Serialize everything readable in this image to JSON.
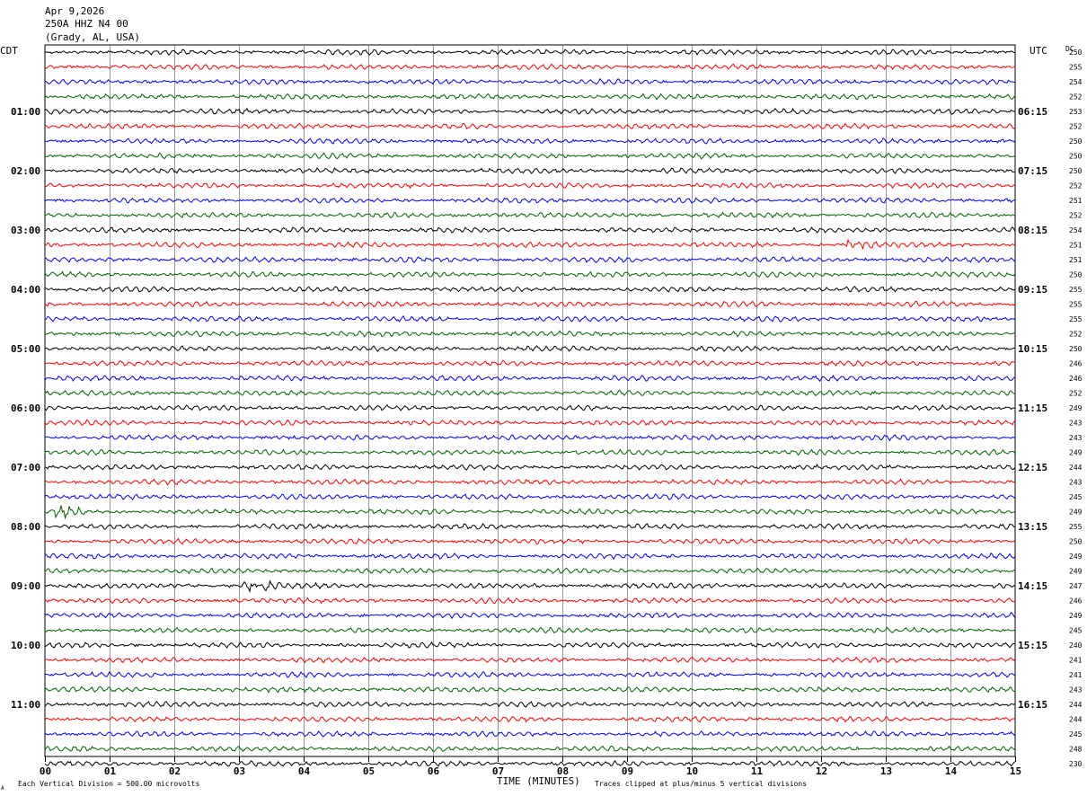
{
  "header": {
    "date": "Apr 9,2026",
    "station": "250A HHZ N4 00",
    "location": "(Grady, AL, USA)"
  },
  "left_tz": "CDT",
  "right_tz": "UTC",
  "dc_label": "DC",
  "footer": {
    "vertical_division": "Each Vertical Division =  500.00 microvolts",
    "clip_note": "Traces clipped at plus/minus 5 vertical divisions",
    "corner_mark": "A"
  },
  "chart_data": {
    "type": "line",
    "xlabel": "TIME (MINUTES)",
    "x_ticks": [
      "00",
      "01",
      "02",
      "03",
      "04",
      "05",
      "06",
      "07",
      "08",
      "09",
      "10",
      "11",
      "12",
      "13",
      "14",
      "15"
    ],
    "xlim": [
      0,
      15
    ],
    "grid": true,
    "trace_colors": [
      "#000000",
      "#ff0000",
      "#0000ff",
      "#006400"
    ],
    "left_hour_labels": [
      "01:00",
      "02:00",
      "03:00",
      "04:00",
      "05:00",
      "06:00",
      "07:00",
      "08:00",
      "09:00",
      "10:00",
      "11:00"
    ],
    "right_hour_labels": [
      "06:15",
      "07:15",
      "08:15",
      "09:15",
      "10:15",
      "11:15",
      "12:15",
      "13:15",
      "14:15",
      "15:15",
      "16:15"
    ],
    "dc_offsets": [
      "250",
      "255",
      "254",
      "252",
      "253",
      "252",
      "250",
      "250",
      "250",
      "252",
      "251",
      "252",
      "254",
      "251",
      "251",
      "250",
      "255",
      "255",
      "255",
      "252",
      "250",
      "246",
      "246",
      "252",
      "249",
      "243",
      "243",
      "249",
      "244",
      "243",
      "245",
      "249",
      "255",
      "250",
      "249",
      "249",
      "247",
      "246",
      "249",
      "245",
      "240",
      "241",
      "241",
      "243",
      "244",
      "244",
      "245",
      "248",
      "230"
    ],
    "events": [
      {
        "trace_index": 36,
        "minute": 3.1,
        "amplitude_scale": 2.6
      },
      {
        "trace_index": 31,
        "minute": 0.2,
        "amplitude_scale": 1.5
      },
      {
        "trace_index": 13,
        "minute": 12.4,
        "amplitude_scale": 1.4
      }
    ]
  }
}
